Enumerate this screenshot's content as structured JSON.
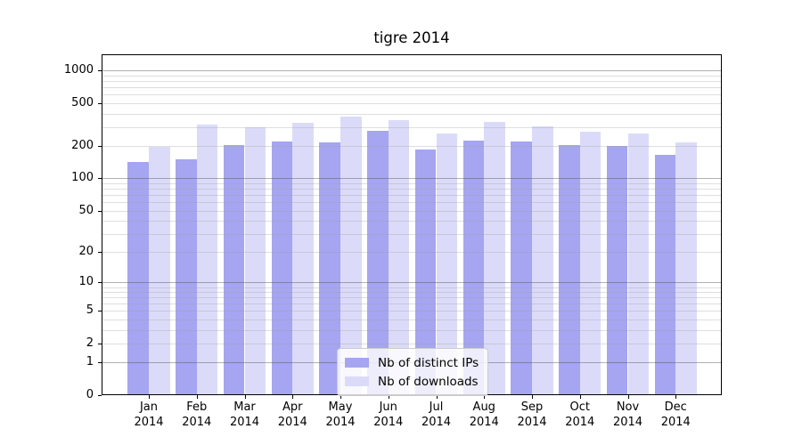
{
  "title": "tigre 2014",
  "chart_data": {
    "type": "bar",
    "title": "tigre 2014",
    "categories": [
      "Jan 2014",
      "Feb 2014",
      "Mar 2014",
      "Apr 2014",
      "May 2014",
      "Jun 2014",
      "Jul 2014",
      "Aug 2014",
      "Sep 2014",
      "Oct 2014",
      "Nov 2014",
      "Dec 2014"
    ],
    "months": [
      "Jan",
      "Feb",
      "Mar",
      "Apr",
      "May",
      "Jun",
      "Jul",
      "Aug",
      "Sep",
      "Oct",
      "Nov",
      "Dec"
    ],
    "year": "2014",
    "series": [
      {
        "name": "Nb of distinct IPs",
        "color": "#a5a5f1",
        "values": [
          142,
          152,
          203,
          219,
          218,
          276,
          187,
          226,
          220,
          204,
          199,
          165
        ]
      },
      {
        "name": "Nb of downloads",
        "color": "#dbdbf9",
        "values": [
          196,
          315,
          297,
          330,
          378,
          350,
          262,
          335,
          303,
          270,
          263,
          215
        ]
      }
    ],
    "y_scale": "log1p",
    "y_ticks": [
      0,
      1,
      2,
      5,
      10,
      20,
      50,
      100,
      200,
      500,
      1000
    ],
    "ylim": [
      0,
      1380
    ],
    "xlabel": "",
    "ylabel": "",
    "grid": true,
    "legend_position": "lower center",
    "colors": {
      "major_grid": "#b2b2b2",
      "minor_grid": "#dedede",
      "spine": "#000000",
      "background": "#ffffff"
    }
  }
}
